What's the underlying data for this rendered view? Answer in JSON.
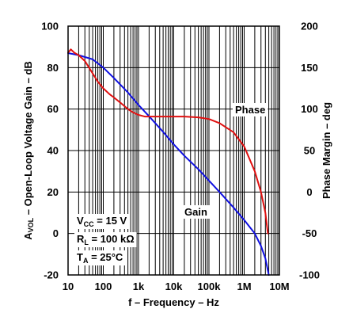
{
  "chart_data": {
    "type": "line",
    "xlabel": "f – Frequency – Hz",
    "ylabel_left_prefix": "A",
    "ylabel_left_sub": "VOL",
    "ylabel_left_suffix": " – Open-Loop Voltage Gain – dB",
    "ylabel_right": "Phase Margin – deg",
    "x_scale": "log",
    "xlim": [
      10,
      10000000
    ],
    "ylim_left": [
      -20,
      100
    ],
    "ylim_right": [
      -100,
      200
    ],
    "grid": true,
    "x_ticks": [
      {
        "v": 10,
        "label": "10"
      },
      {
        "v": 100,
        "label": "100"
      },
      {
        "v": 1000,
        "label": "1k"
      },
      {
        "v": 10000,
        "label": "10k"
      },
      {
        "v": 100000,
        "label": "100k"
      },
      {
        "v": 1000000,
        "label": "1M"
      },
      {
        "v": 10000000,
        "label": "10M"
      }
    ],
    "y_left_ticks": [
      -20,
      0,
      20,
      40,
      60,
      80,
      100
    ],
    "y_right_ticks": [
      -100,
      -50,
      0,
      50,
      100,
      150,
      200
    ],
    "series": [
      {
        "name": "Gain",
        "axis": "left",
        "color": "#1010e0",
        "points": [
          [
            10,
            87
          ],
          [
            20,
            86
          ],
          [
            50,
            84
          ],
          [
            100,
            80
          ],
          [
            200,
            75
          ],
          [
            500,
            68
          ],
          [
            1000,
            62
          ],
          [
            2000,
            56.5
          ],
          [
            5000,
            49
          ],
          [
            10000,
            43
          ],
          [
            20000,
            37.5
          ],
          [
            50000,
            31
          ],
          [
            100000,
            25.5
          ],
          [
            200000,
            20
          ],
          [
            500000,
            12.5
          ],
          [
            1000000,
            6.5
          ],
          [
            2000000,
            0
          ],
          [
            3000000,
            -6
          ],
          [
            4000000,
            -12
          ],
          [
            5000000,
            -20
          ]
        ]
      },
      {
        "name": "Phase",
        "axis": "right",
        "color": "#e01010",
        "points": [
          [
            10,
            168
          ],
          [
            12,
            172
          ],
          [
            15,
            168
          ],
          [
            20,
            165
          ],
          [
            30,
            158
          ],
          [
            50,
            143
          ],
          [
            70,
            133
          ],
          [
            100,
            125
          ],
          [
            150,
            118
          ],
          [
            200,
            114
          ],
          [
            300,
            108
          ],
          [
            500,
            100
          ],
          [
            700,
            96
          ],
          [
            1000,
            93
          ],
          [
            1500,
            91
          ],
          [
            2000,
            91
          ],
          [
            5000,
            91
          ],
          [
            10000,
            91
          ],
          [
            20000,
            91
          ],
          [
            50000,
            90
          ],
          [
            100000,
            88
          ],
          [
            200000,
            83
          ],
          [
            500000,
            72
          ],
          [
            1000000,
            55
          ],
          [
            2000000,
            25
          ],
          [
            3000000,
            0
          ],
          [
            4000000,
            -25
          ],
          [
            4700000,
            -50
          ]
        ]
      }
    ],
    "annotations": {
      "phase_label": "Phase",
      "gain_label": "Gain",
      "vcc_prefix": "V",
      "vcc_sub": "CC",
      "vcc_suffix": " = 15 V",
      "rl_prefix": "R",
      "rl_sub": "L",
      "rl_suffix": " = 100 kΩ",
      "ta_prefix": "T",
      "ta_sub": "A",
      "ta_suffix": " = 25°C"
    }
  }
}
